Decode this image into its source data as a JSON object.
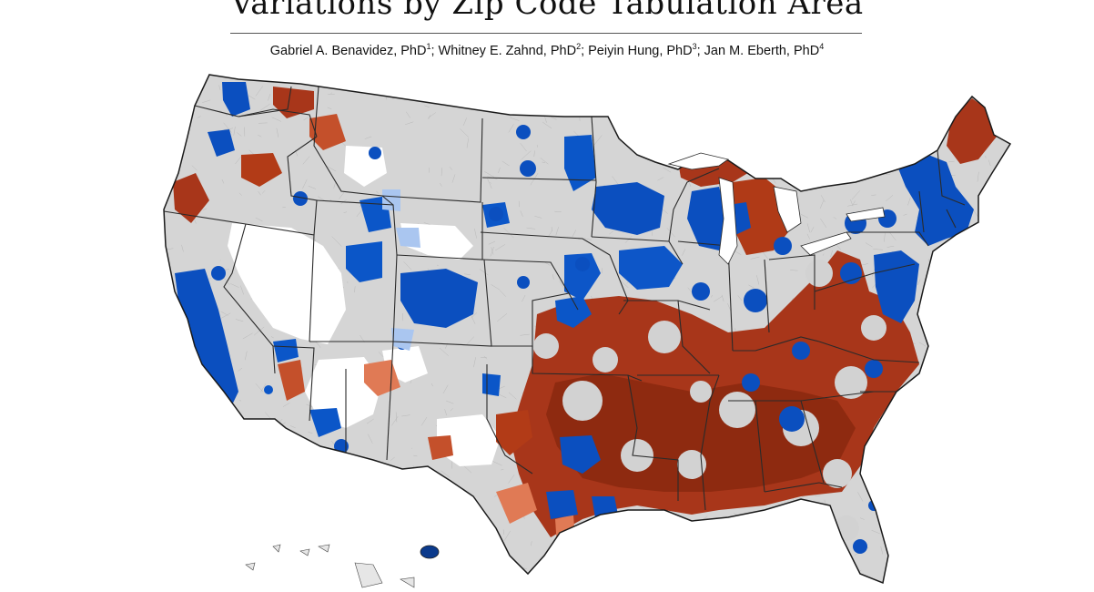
{
  "header": {
    "title": "Variations by Zip Code Tabulation Area",
    "authors": [
      {
        "name": "Gabriel A. Benavidez, PhD",
        "sup": "1",
        "sep": "; "
      },
      {
        "name": "Whitney E. Zahnd, PhD",
        "sup": "2",
        "sep": "; "
      },
      {
        "name": "Peiyin Hung, PhD",
        "sup": "3",
        "sep": "; "
      },
      {
        "name": "Jan M. Eberth, PhD",
        "sup": "4",
        "sep": ""
      }
    ]
  },
  "map": {
    "region": "Contiguous United States",
    "unit": "Zip Code Tabulation Area",
    "colors": {
      "base_land": "#d5d5d5",
      "no_data": "#ffffff",
      "state_border": "#2a2a2a",
      "hot_dark": "#8e2a10",
      "hot": "#b23b17",
      "hot_light": "#e07a55",
      "hot_pale": "#f2b79a",
      "cold_dark": "#0a3a8c",
      "cold": "#0b56c8",
      "cold_light": "#5d91e3",
      "cold_pale": "#aac6f0"
    }
  }
}
